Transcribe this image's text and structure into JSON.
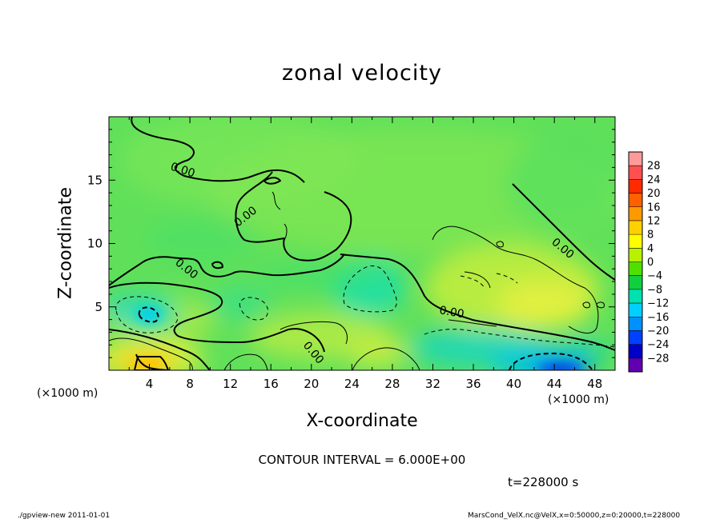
{
  "chart_data": {
    "type": "heatmap",
    "title": "zonal velocity",
    "xlabel": "X-coordinate",
    "ylabel": "Z-coordinate",
    "x_unit_label": "(×1000 m)",
    "xlim": [
      0,
      50
    ],
    "ylim": [
      0,
      20
    ],
    "x_ticks": [
      "4",
      "8",
      "12",
      "16",
      "20",
      "24",
      "28",
      "32",
      "36",
      "40",
      "44",
      "48"
    ],
    "y_ticks": [
      "5",
      "10",
      "15"
    ],
    "colorbar": {
      "labels": [
        "28",
        "24",
        "20",
        "16",
        "12",
        "8",
        "4",
        "0",
        "−4",
        "−8",
        "−12",
        "−16",
        "−20",
        "−24",
        "−28"
      ],
      "colors": [
        "#ff9a9a",
        "#ff5050",
        "#ff2a00",
        "#ff6000",
        "#ff9900",
        "#ffd000",
        "#ffff00",
        "#b8f000",
        "#50e000",
        "#10d040",
        "#00e0b0",
        "#00d0ff",
        "#0090ff",
        "#0040ff",
        "#0000c8",
        "#6000b0"
      ]
    },
    "contour_labels": [
      "0.00",
      "0.00",
      "0.00",
      "0.00",
      "0.00",
      "0.00"
    ],
    "contour_interval_text": "CONTOUR INTERVAL = 6.000E+00",
    "time_text": "t=228000 s"
  },
  "footer": {
    "left": "./gpview-new  2011-01-01",
    "right": "MarsCond_VelX.nc@VelX,x=0:50000,z=0:20000,t=228000"
  }
}
